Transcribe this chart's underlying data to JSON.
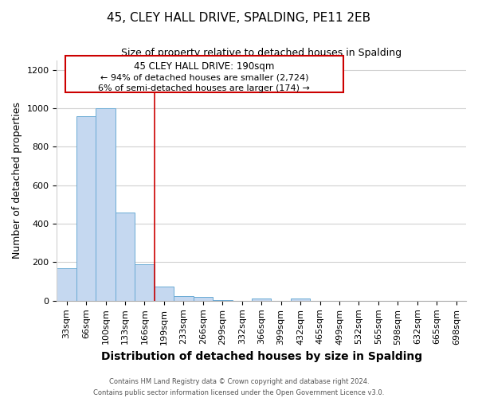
{
  "title": "45, CLEY HALL DRIVE, SPALDING, PE11 2EB",
  "subtitle": "Size of property relative to detached houses in Spalding",
  "xlabel": "Distribution of detached houses by size in Spalding",
  "ylabel": "Number of detached properties",
  "bar_labels": [
    "33sqm",
    "66sqm",
    "100sqm",
    "133sqm",
    "166sqm",
    "199sqm",
    "233sqm",
    "266sqm",
    "299sqm",
    "332sqm",
    "366sqm",
    "399sqm",
    "432sqm",
    "465sqm",
    "499sqm",
    "532sqm",
    "565sqm",
    "598sqm",
    "632sqm",
    "665sqm",
    "698sqm"
  ],
  "bar_values": [
    170,
    960,
    1000,
    460,
    190,
    75,
    25,
    18,
    5,
    0,
    10,
    0,
    10,
    0,
    0,
    0,
    0,
    0,
    0,
    0,
    0
  ],
  "bar_color": "#c5d8f0",
  "bar_edgecolor": "#6aaad4",
  "property_line_label": "45 CLEY HALL DRIVE: 190sqm",
  "annotation_line1": "← 94% of detached houses are smaller (2,724)",
  "annotation_line2": "6% of semi-detached houses are larger (174) →",
  "annotation_box_edgecolor": "#cc0000",
  "annotation_text_color": "#000000",
  "ylim": [
    0,
    1250
  ],
  "yticks": [
    0,
    200,
    400,
    600,
    800,
    1000,
    1200
  ],
  "footer_line1": "Contains HM Land Registry data © Crown copyright and database right 2024.",
  "footer_line2": "Contains public sector information licensed under the Open Government Licence v3.0.",
  "background_color": "#ffffff",
  "grid_color": "#d0d0d0",
  "title_fontsize": 11,
  "subtitle_fontsize": 9,
  "axis_label_fontsize": 9,
  "tick_fontsize": 8,
  "annotation_fontsize": 8,
  "footer_fontsize": 6
}
